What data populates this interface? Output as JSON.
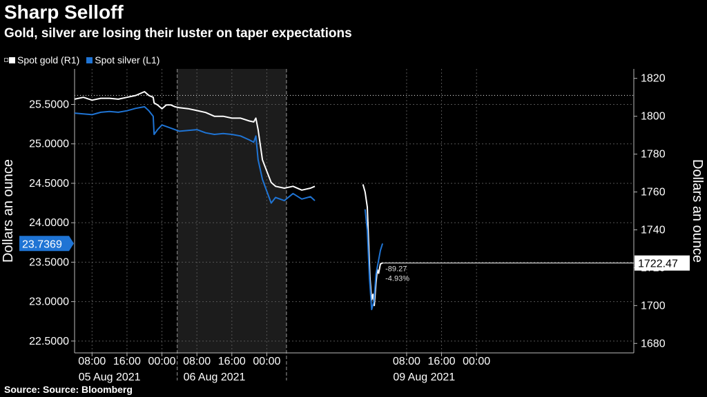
{
  "header": {
    "title": "Sharp Selloff",
    "subtitle": "Gold, silver are losing their luster on taper expectations"
  },
  "legend": {
    "gold_label": "Spot gold (R1)",
    "silver_label": "Spot silver (L1)"
  },
  "footer": {
    "source": "Source: Source: Bloomberg"
  },
  "colors": {
    "background": "#000000",
    "shaded_band": "#1c1c1c",
    "gold": "#ffffff",
    "silver": "#1f74d4",
    "grid": "#555555",
    "text": "#ffffff"
  },
  "chart_data": {
    "type": "line",
    "title": "Sharp Selloff",
    "subtitle": "Gold, silver are losing their luster on taper expectations",
    "left_axis": {
      "label": "Dollars an ounce",
      "range": [
        22.35,
        25.95
      ],
      "ticks": [
        "22.5000",
        "23.0000",
        "23.5000",
        "24.0000",
        "24.5000",
        "25.0000",
        "25.5000"
      ],
      "current_value_label": "23.7369"
    },
    "right_axis": {
      "label": "Dollars an ounce",
      "range": [
        1675,
        1825
      ],
      "ticks": [
        "1680",
        "1700",
        "1720",
        "1740",
        "1760",
        "1780",
        "1800",
        "1820"
      ],
      "current_value_label": "1722.47",
      "reference_line_value": 1811
    },
    "x_axis": {
      "range_hours": [
        -2.0,
        126.0
      ],
      "ticks": [
        {
          "hour": 2,
          "label": "08:00"
        },
        {
          "hour": 10,
          "label": "16:00"
        },
        {
          "hour": 18,
          "label": "00:00"
        },
        {
          "hour": 26,
          "label": "08:00"
        },
        {
          "hour": 34,
          "label": "16:00"
        },
        {
          "hour": 42,
          "label": "00:00"
        },
        {
          "hour": 74,
          "label": "08:00"
        },
        {
          "hour": 82,
          "label": "16:00"
        },
        {
          "hour": 90,
          "label": "00:00"
        }
      ],
      "date_labels": [
        {
          "hour": 6,
          "label": "05 Aug 2021"
        },
        {
          "hour": 30,
          "label": "06 Aug 2021"
        },
        {
          "hour": 78,
          "label": "09 Aug 2021"
        }
      ],
      "session_separators": [
        {
          "hour": 21.5,
          "style": "dashed"
        },
        {
          "hour": 46.5,
          "style": "dashed"
        }
      ],
      "shaded_range": [
        21.5,
        46.5
      ]
    },
    "annotations": {
      "change": "-89.27",
      "change_pct": "-4.93%"
    },
    "grid": true,
    "legend_position": "top-left",
    "series": [
      {
        "name": "Spot gold (R1)",
        "axis": "right",
        "color": "#ffffff",
        "segments": [
          [
            [
              -2,
              1809
            ],
            [
              0,
              1810
            ],
            [
              2,
              1808.5
            ],
            [
              4,
              1809.5
            ],
            [
              6,
              1809.5
            ],
            [
              8,
              1809
            ],
            [
              10,
              1810
            ],
            [
              12,
              1811
            ],
            [
              14,
              1813
            ],
            [
              15,
              1811
            ],
            [
              16,
              1810
            ],
            [
              16.2,
              1807
            ],
            [
              17,
              1806
            ],
            [
              18,
              1804
            ],
            [
              19,
              1806
            ],
            [
              20,
              1806
            ],
            [
              21,
              1805
            ],
            [
              22,
              1804.5
            ],
            [
              24,
              1804
            ],
            [
              26,
              1803
            ],
            [
              28,
              1802
            ],
            [
              30,
              1800
            ],
            [
              32,
              1800
            ],
            [
              34,
              1799
            ],
            [
              36,
              1799
            ],
            [
              38,
              1797.5
            ],
            [
              39,
              1797
            ],
            [
              39.5,
              1799
            ],
            [
              40,
              1793
            ],
            [
              41,
              1777
            ],
            [
              42,
              1771
            ],
            [
              43,
              1765
            ],
            [
              44,
              1763
            ],
            [
              46,
              1762
            ],
            [
              48,
              1763
            ],
            [
              50,
              1761
            ],
            [
              52,
              1762
            ],
            [
              53,
              1763
            ]
          ],
          [
            [
              64,
              1764
            ],
            [
              64.5,
              1760
            ],
            [
              65,
              1752
            ],
            [
              65.6,
              1715
            ],
            [
              66,
              1703
            ],
            [
              66.3,
              1706
            ],
            [
              66.6,
              1700
            ],
            [
              67,
              1712
            ],
            [
              67.3,
              1719
            ],
            [
              67.6,
              1717
            ],
            [
              68,
              1722
            ],
            [
              68.5,
              1722.47
            ]
          ]
        ]
      },
      {
        "name": "Spot silver (L1)",
        "axis": "left",
        "color": "#1f74d4",
        "segments": [
          [
            [
              -2,
              25.39
            ],
            [
              0,
              25.38
            ],
            [
              2,
              25.37
            ],
            [
              4,
              25.4
            ],
            [
              6,
              25.41
            ],
            [
              8,
              25.4
            ],
            [
              10,
              25.42
            ],
            [
              12,
              25.45
            ],
            [
              14,
              25.47
            ],
            [
              15,
              25.42
            ],
            [
              16,
              25.35
            ],
            [
              16.2,
              25.12
            ],
            [
              17,
              25.18
            ],
            [
              18,
              25.24
            ],
            [
              20,
              25.2
            ],
            [
              22,
              25.16
            ],
            [
              24,
              25.17
            ],
            [
              26,
              25.18
            ],
            [
              28,
              25.14
            ],
            [
              30,
              25.12
            ],
            [
              32,
              25.13
            ],
            [
              34,
              25.12
            ],
            [
              36,
              25.1
            ],
            [
              38,
              25.05
            ],
            [
              39,
              25.02
            ],
            [
              39.5,
              25.1
            ],
            [
              40,
              24.8
            ],
            [
              41,
              24.55
            ],
            [
              42,
              24.4
            ],
            [
              43,
              24.25
            ],
            [
              44,
              24.32
            ],
            [
              46,
              24.28
            ],
            [
              48,
              24.37
            ],
            [
              50,
              24.3
            ],
            [
              52,
              24.33
            ],
            [
              53,
              24.28
            ]
          ],
          [
            [
              64.5,
              24.17
            ],
            [
              65,
              23.9
            ],
            [
              65.5,
              23.3
            ],
            [
              66,
              22.9
            ],
            [
              66.5,
              23.0
            ],
            [
              67,
              23.35
            ],
            [
              67.5,
              23.5
            ],
            [
              68,
              23.65
            ],
            [
              68.5,
              23.7369
            ]
          ]
        ]
      }
    ]
  }
}
